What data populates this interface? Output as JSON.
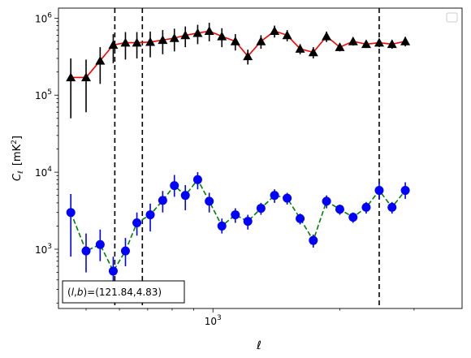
{
  "chart_data": {
    "type": "scatter",
    "xscale": "log",
    "yscale": "log",
    "xlabel": "ℓ",
    "ylabel_main": "C",
    "ylabel_sub": "ℓ",
    "ylabel_unit_left": "[mK",
    "ylabel_unit_sup": "2",
    "ylabel_unit_right": "]",
    "xlim": [
      430,
      3900
    ],
    "ylim": [
      170,
      1350000
    ],
    "x_tick_labels": [
      {
        "value": 1000,
        "base": "10",
        "exp": "3"
      }
    ],
    "y_tick_labels": [
      {
        "value": 1000,
        "base": "10",
        "exp": "3"
      },
      {
        "value": 10000,
        "base": "10",
        "exp": "4"
      },
      {
        "value": 100000,
        "base": "10",
        "exp": "5"
      },
      {
        "value": 1000000,
        "base": "10",
        "exp": "6"
      }
    ],
    "annotation": "(l, b)=(121.84,4.83)",
    "annotation_display": {
      "open": "(",
      "l": "l",
      "comma": ",",
      "b": "b",
      "close": ")",
      "rest": "=(121.84,4.83)"
    },
    "legend": {
      "placement": "top-right",
      "entries": []
    },
    "vertical_lines": [
      585,
      680,
      2480
    ],
    "series": [
      {
        "marker": "triangle",
        "line": "solid",
        "line_color": "#ff0000",
        "marker_color": "#000000",
        "x": [
          460,
          500,
          540,
          580,
          620,
          660,
          710,
          760,
          810,
          860,
          920,
          980,
          1050,
          1130,
          1210,
          1300,
          1400,
          1500,
          1610,
          1730,
          1860,
          2000,
          2150,
          2310,
          2480,
          2660,
          2860
        ],
        "y": [
          170000,
          170000,
          280000,
          450000,
          480000,
          480000,
          490000,
          520000,
          550000,
          600000,
          640000,
          680000,
          580000,
          500000,
          320000,
          500000,
          680000,
          600000,
          400000,
          360000,
          580000,
          420000,
          500000,
          460000,
          480000,
          460000,
          500000
        ],
        "y_low": [
          50000,
          60000,
          140000,
          260000,
          290000,
          300000,
          310000,
          340000,
          370000,
          420000,
          460000,
          500000,
          420000,
          380000,
          250000,
          400000,
          560000,
          500000,
          340000,
          300000,
          490000,
          370000,
          440000,
          410000,
          420000,
          400000,
          430000
        ],
        "y_high": [
          300000,
          290000,
          420000,
          620000,
          660000,
          660000,
          670000,
          700000,
          730000,
          780000,
          820000,
          870000,
          740000,
          620000,
          390000,
          600000,
          800000,
          700000,
          460000,
          420000,
          670000,
          470000,
          560000,
          510000,
          540000,
          520000,
          570000
        ]
      },
      {
        "marker": "circle",
        "line": "dashed",
        "line_color": "#008000",
        "marker_color": "#0000ff",
        "x": [
          460,
          500,
          540,
          580,
          620,
          660,
          710,
          760,
          810,
          860,
          920,
          980,
          1050,
          1130,
          1210,
          1300,
          1400,
          1500,
          1610,
          1730,
          1860,
          2000,
          2150,
          2310,
          2480,
          2660,
          2860
        ],
        "y": [
          3000,
          950,
          1150,
          520,
          950,
          2200,
          2800,
          4300,
          6700,
          5000,
          8000,
          4200,
          2000,
          2800,
          2300,
          3400,
          5000,
          4600,
          2500,
          1300,
          4200,
          3300,
          2600,
          3500,
          5800,
          3500,
          5800
        ],
        "y_low": [
          800,
          500,
          700,
          300,
          600,
          1500,
          1700,
          3000,
          4800,
          3200,
          6000,
          3000,
          1600,
          2200,
          1800,
          2800,
          4000,
          3800,
          2100,
          1050,
          3400,
          2800,
          2200,
          2900,
          4500,
          2900,
          4500
        ],
        "y_high": [
          5200,
          1600,
          1800,
          800,
          1400,
          3000,
          3900,
          5700,
          9200,
          6800,
          10000,
          5400,
          2500,
          3400,
          2800,
          4000,
          6000,
          5400,
          2900,
          1550,
          5000,
          3800,
          3000,
          4100,
          7400,
          4100,
          7400
        ]
      }
    ]
  }
}
